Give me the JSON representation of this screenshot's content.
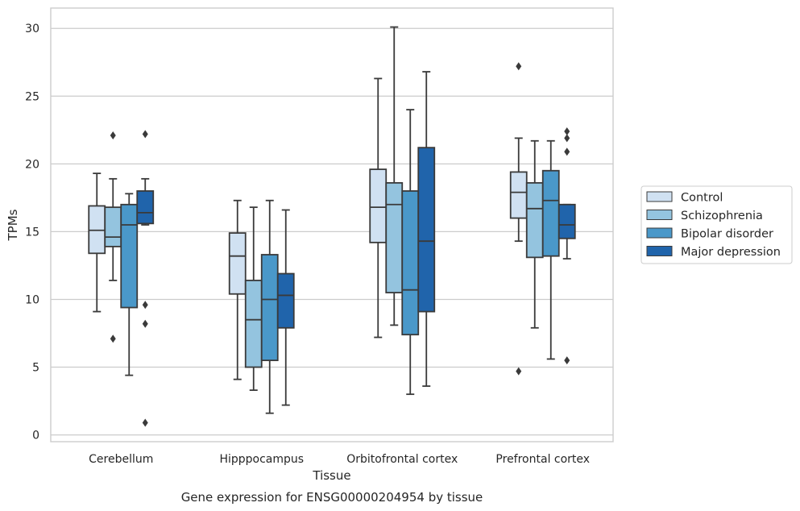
{
  "chart_data": {
    "type": "box",
    "xlabel": "Tissue",
    "ylabel": "TPMs",
    "caption": "Gene expression for ENSG00000204954 by tissue",
    "ylim": [
      -0.5,
      31.5
    ],
    "yticks": [
      "0",
      "5",
      "10",
      "15",
      "20",
      "25",
      "30"
    ],
    "grid": true,
    "legend_position": "right",
    "categories": [
      "Cerebellum",
      "Hipppocampus",
      "Orbitofrontal cortex",
      "Prefrontal cortex"
    ],
    "series": [
      {
        "name": "Control",
        "color": "#d0e1f2",
        "boxes": [
          {
            "whisker_low": 9.1,
            "q1": 13.4,
            "median": 15.1,
            "q3": 16.9,
            "whisker_high": 19.3,
            "outliers": []
          },
          {
            "whisker_low": 4.1,
            "q1": 10.4,
            "median": 13.2,
            "q3": 14.9,
            "whisker_high": 17.3,
            "outliers": []
          },
          {
            "whisker_low": 7.2,
            "q1": 14.2,
            "median": 16.8,
            "q3": 19.6,
            "whisker_high": 26.3,
            "outliers": []
          },
          {
            "whisker_low": 14.3,
            "q1": 16.0,
            "median": 17.9,
            "q3": 19.4,
            "whisker_high": 21.9,
            "outliers": [
              27.2,
              4.7
            ]
          }
        ]
      },
      {
        "name": "Schizophrenia",
        "color": "#94c4df",
        "boxes": [
          {
            "whisker_low": 11.4,
            "q1": 13.9,
            "median": 14.6,
            "q3": 16.8,
            "whisker_high": 18.9,
            "outliers": [
              22.1,
              7.1
            ]
          },
          {
            "whisker_low": 3.3,
            "q1": 5.0,
            "median": 8.5,
            "q3": 11.4,
            "whisker_high": 16.8,
            "outliers": []
          },
          {
            "whisker_low": 8.1,
            "q1": 10.5,
            "median": 17.0,
            "q3": 18.6,
            "whisker_high": 30.1,
            "outliers": []
          },
          {
            "whisker_low": 7.9,
            "q1": 13.1,
            "median": 16.7,
            "q3": 18.6,
            "whisker_high": 21.7,
            "outliers": []
          }
        ]
      },
      {
        "name": "Bipolar disorder",
        "color": "#4a98c9",
        "boxes": [
          {
            "whisker_low": 4.4,
            "q1": 9.4,
            "median": 15.5,
            "q3": 17.0,
            "whisker_high": 17.8,
            "outliers": []
          },
          {
            "whisker_low": 1.6,
            "q1": 5.5,
            "median": 10.0,
            "q3": 13.3,
            "whisker_high": 17.3,
            "outliers": []
          },
          {
            "whisker_low": 3.0,
            "q1": 7.4,
            "median": 10.7,
            "q3": 18.0,
            "whisker_high": 24.0,
            "outliers": []
          },
          {
            "whisker_low": 5.6,
            "q1": 13.2,
            "median": 17.3,
            "q3": 19.5,
            "whisker_high": 21.7,
            "outliers": []
          }
        ]
      },
      {
        "name": "Major depression",
        "color": "#2064ab",
        "boxes": [
          {
            "whisker_low": 15.5,
            "q1": 15.6,
            "median": 16.4,
            "q3": 18.0,
            "whisker_high": 18.9,
            "outliers": [
              22.2,
              9.6,
              8.2,
              0.9
            ]
          },
          {
            "whisker_low": 2.2,
            "q1": 7.9,
            "median": 10.3,
            "q3": 11.9,
            "whisker_high": 16.6,
            "outliers": []
          },
          {
            "whisker_low": 3.6,
            "q1": 9.1,
            "median": 14.3,
            "q3": 21.2,
            "whisker_high": 26.8,
            "outliers": []
          },
          {
            "whisker_low": 13.0,
            "q1": 14.5,
            "median": 15.5,
            "q3": 17.0,
            "whisker_high": 17.0,
            "outliers": [
              22.4,
              21.9,
              20.9,
              5.5
            ]
          }
        ]
      }
    ]
  }
}
